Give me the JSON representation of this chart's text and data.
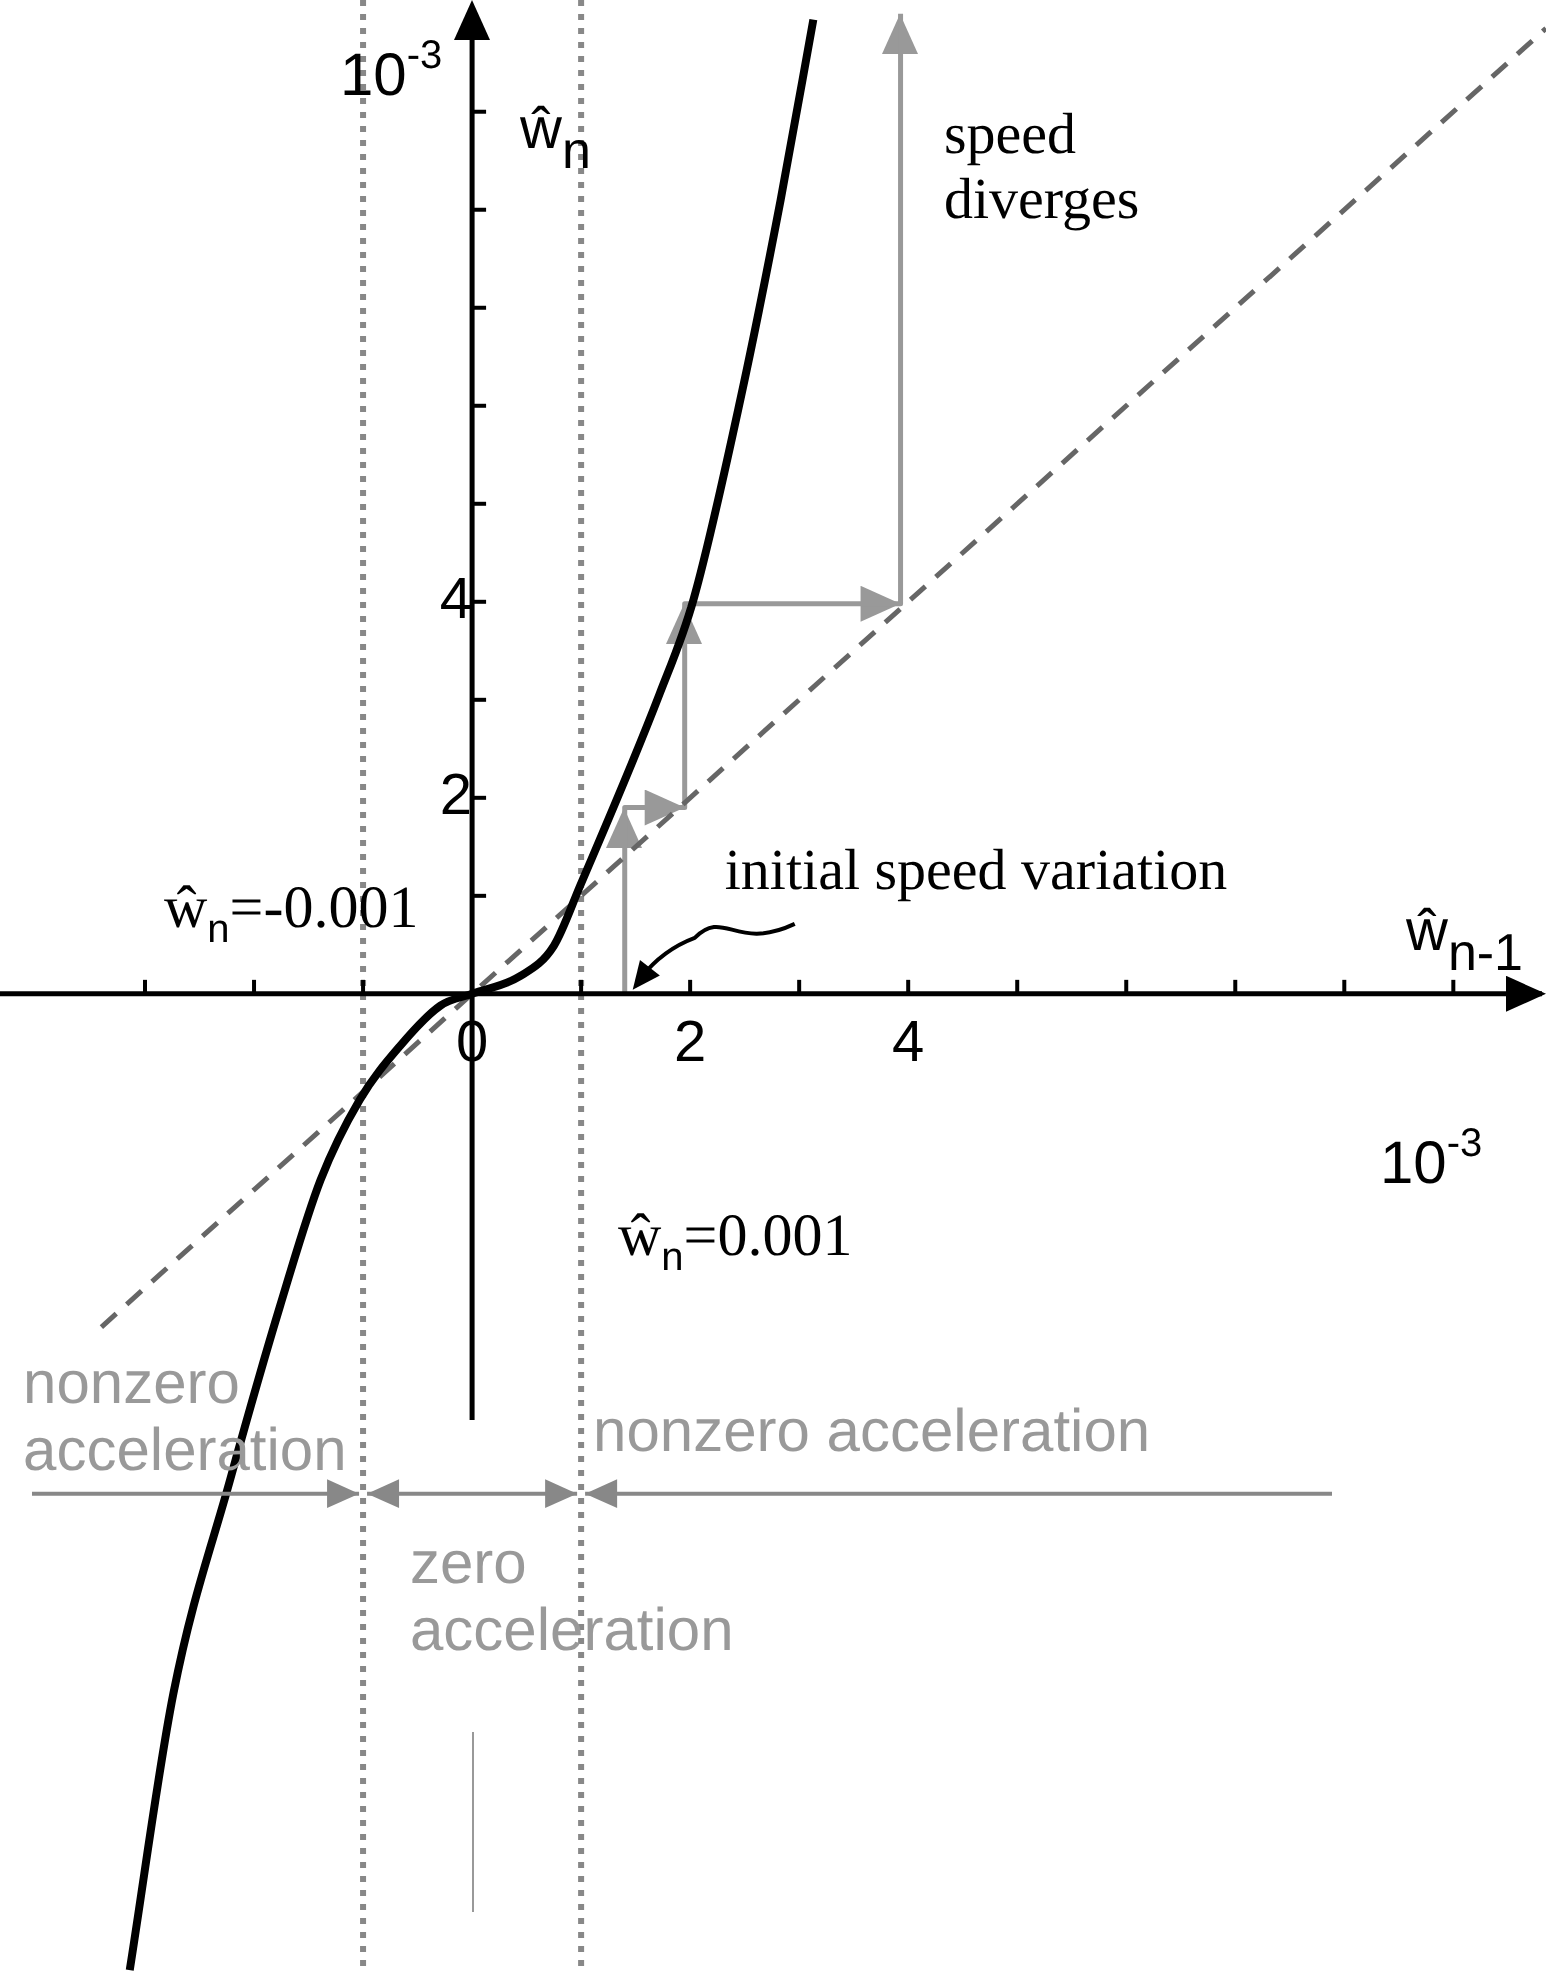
{
  "chart_data": {
    "type": "line",
    "xlabel": "ŵ$_{n-1}$",
    "ylabel": "ŵ$_{n}$",
    "xlim": [
      -4.33,
      9.85
    ],
    "ylim": [
      -9.98,
      10.14
    ],
    "xticks": [
      {
        "value": -3,
        "label": null
      },
      {
        "value": -2,
        "label": null
      },
      {
        "value": -1,
        "label": null
      },
      0,
      {
        "value": 1,
        "label": null
      },
      2,
      {
        "value": 3,
        "label": null
      },
      4,
      {
        "value": 5,
        "label": null
      },
      {
        "value": 6,
        "label": null
      },
      {
        "value": 7,
        "label": null
      },
      {
        "value": 8,
        "label": null
      },
      {
        "value": 9,
        "label": null
      }
    ],
    "yticks": [
      {
        "value": 1,
        "label": null
      },
      2,
      {
        "value": 3,
        "label": null
      },
      4,
      {
        "value": 5,
        "label": null
      },
      {
        "value": 6,
        "label": null
      },
      {
        "value": 7,
        "label": null
      },
      {
        "value": 8,
        "label": null
      },
      {
        "value": 9,
        "label": null
      }
    ],
    "legend": false,
    "marker": "none",
    "series": [
      {
        "color": "#000000",
        "line_style": "solid",
        "x": [
          -3.14,
          -2.74,
          -2.22,
          -1.76,
          -1.39,
          -1.03,
          -0.66,
          -0.29,
          0,
          0.44,
          0.75,
          0.99,
          1.72,
          2.03,
          2.46,
          2.83,
          3.13
        ],
        "values": [
          -9.96,
          -7.14,
          -4.96,
          -3.18,
          -1.9,
          -1.08,
          -0.53,
          -0.12,
          0,
          0.18,
          0.49,
          1.1,
          3.06,
          4.02,
          6.06,
          8.1,
          9.94
        ]
      },
      {
        "color": "#666666",
        "line_style": "dashed",
        "x": [
          -3.4,
          9.85
        ],
        "values": [
          -3.4,
          9.85
        ]
      },
      {
        "color": "#999999",
        "line_style": "solid",
        "x": [
          1.4,
          1.4,
          1.95,
          1.95,
          3.93,
          3.93
        ],
        "values": [
          0,
          1.9,
          1.9,
          3.98,
          3.98,
          10.0
        ]
      }
    ],
    "ref_lines": [
      {
        "axis": "x",
        "value": -1,
        "color": "#888888",
        "line_style": "dotted"
      },
      {
        "axis": "x",
        "value": 1,
        "color": "#888888",
        "line_style": "dotted"
      }
    ],
    "annotations": [
      "speed diverges",
      {
        "text": "initial speed variation",
        "x": 1.4,
        "y": 0
      },
      {
        "text": "nonzero acceleration",
        "x": -1,
        "y": -5.1
      },
      "zero acceleration",
      {
        "text": "nonzero acceleration",
        "x": 1,
        "y": -5.1
      },
      "10$^{-3}$",
      "10$^{-3}$",
      "ŵ$_{n}$=-0.001",
      "ŵ$_{n}$=0.001"
    ]
  }
}
